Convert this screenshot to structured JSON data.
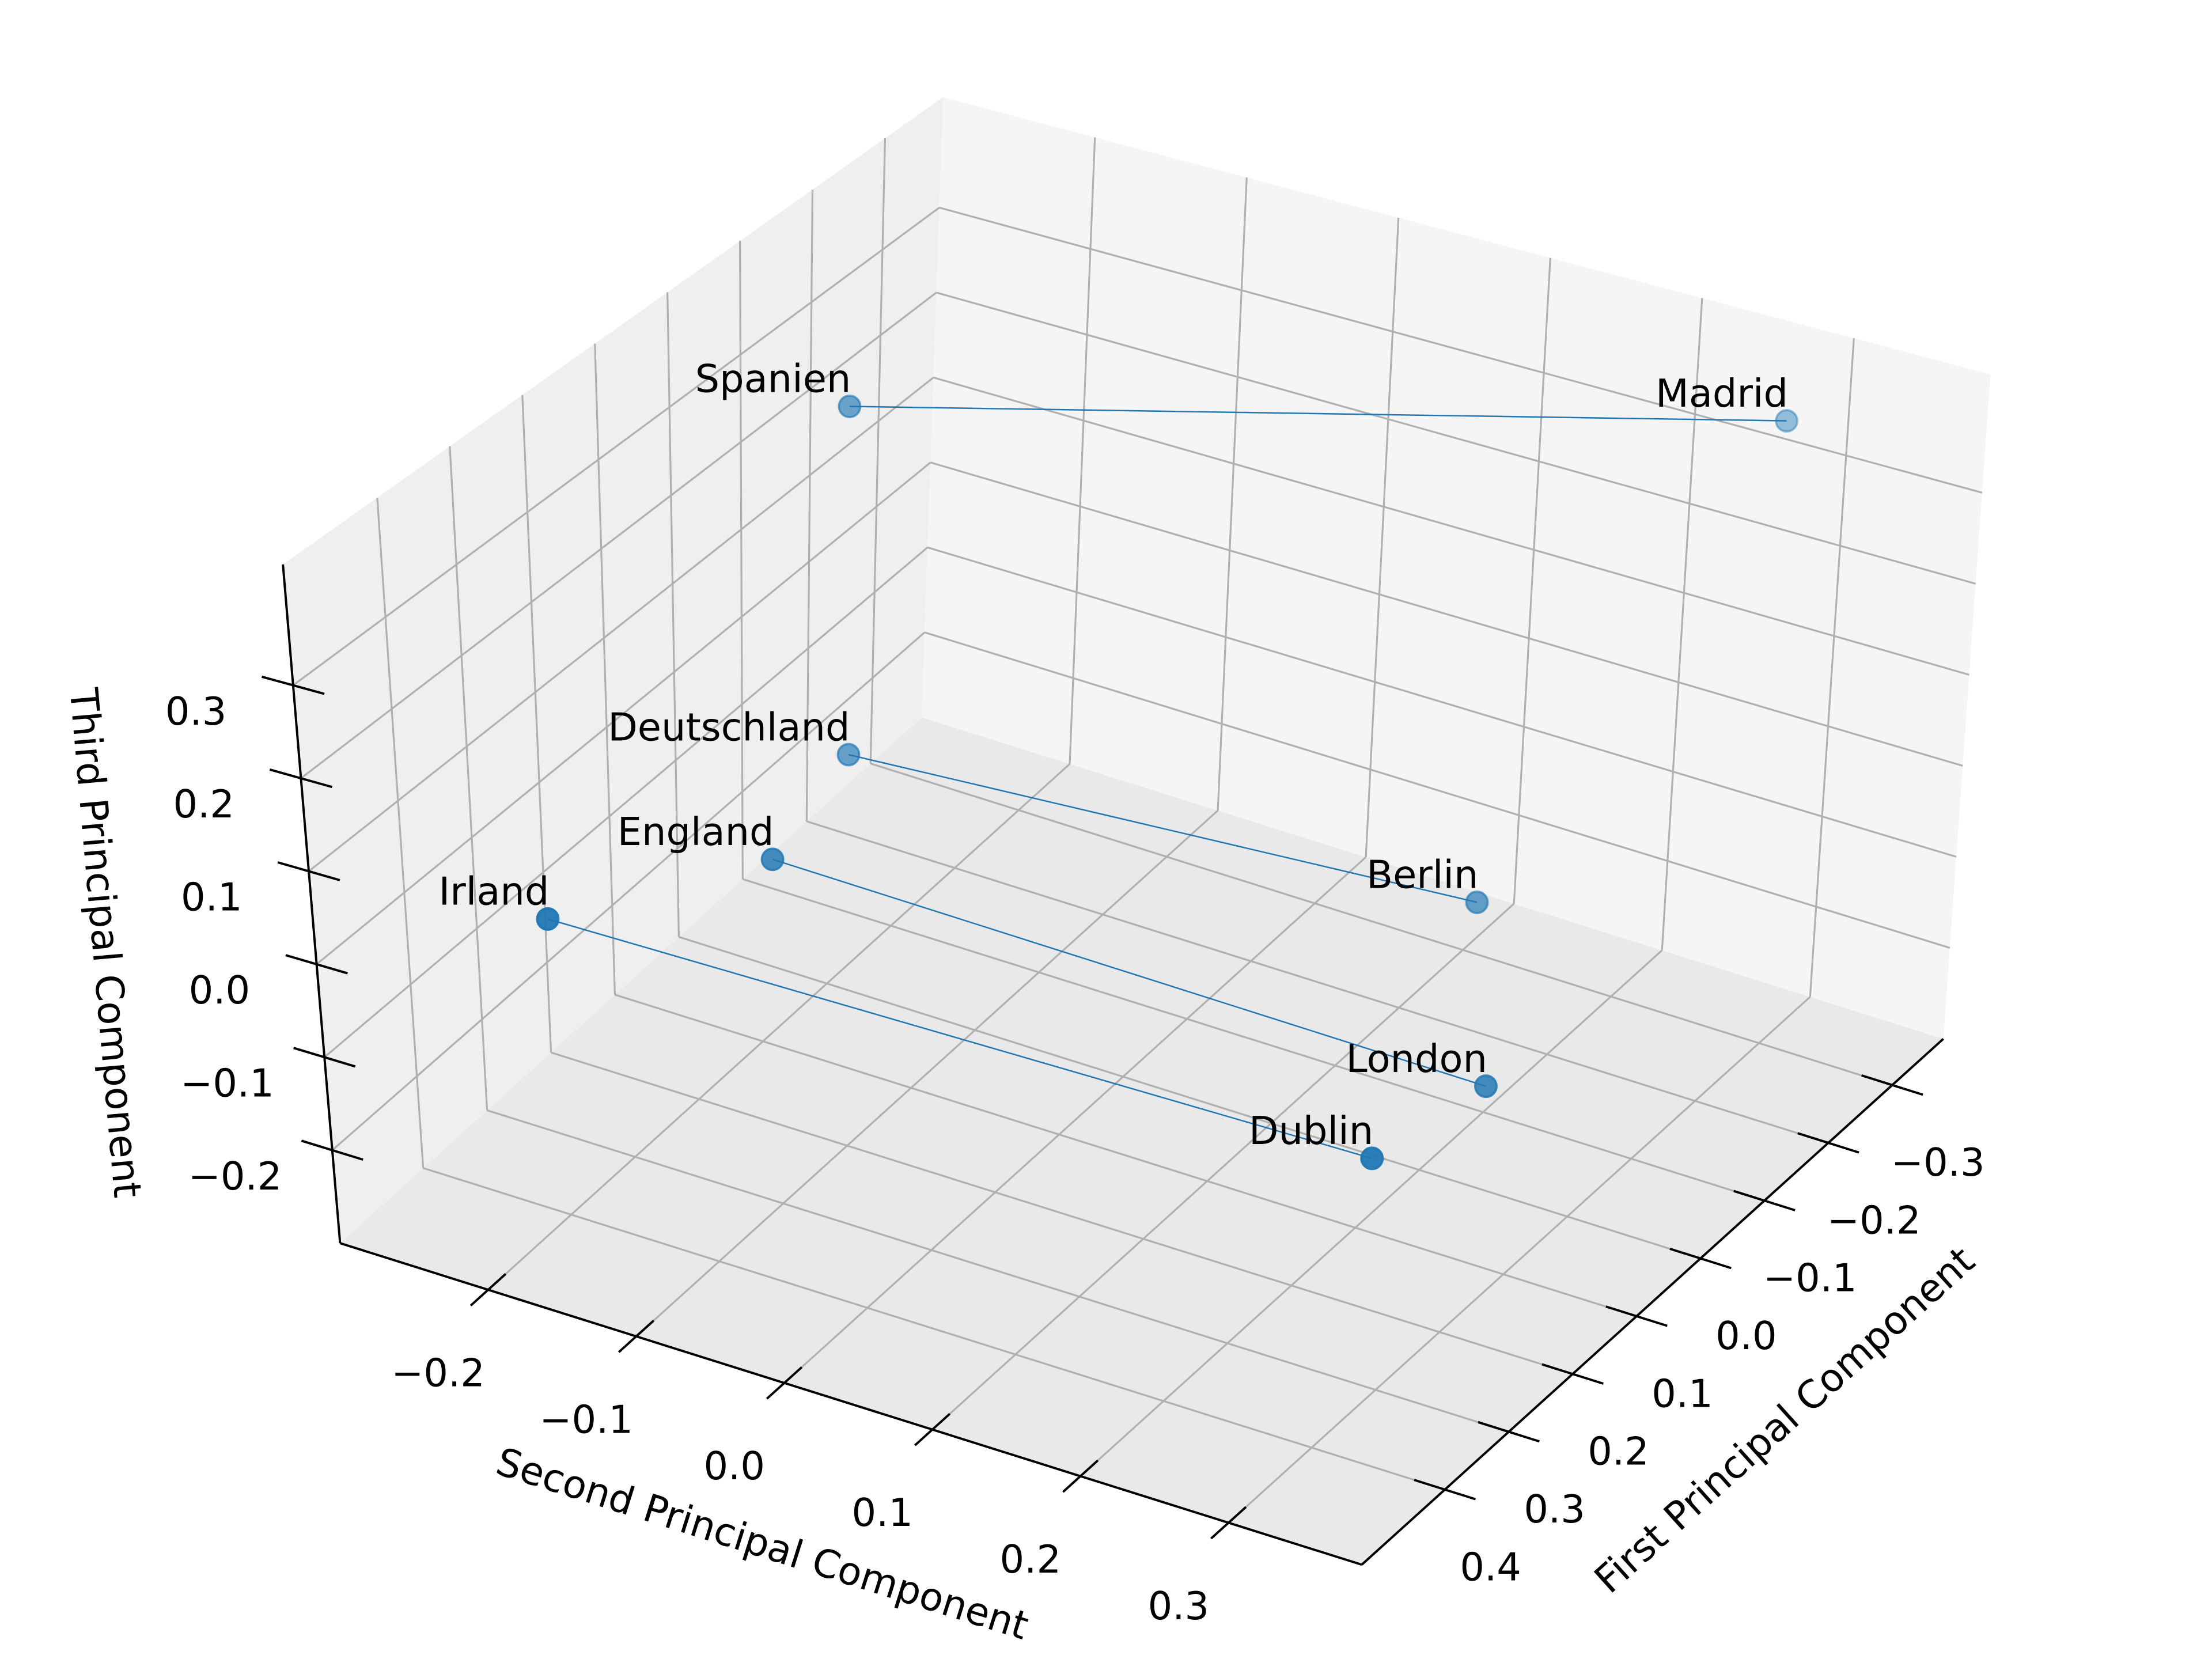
{
  "chart_data": {
    "type": "scatter3d",
    "color": "#1f77b4",
    "xlabel": "Second Principal Component",
    "ylabel": "First Principal Component",
    "zlabel": "Third Principal Component",
    "xlim": [
      -0.3,
      0.39
    ],
    "ylim": [
      -0.38,
      0.53
    ],
    "zlim": [
      -0.3,
      0.43
    ],
    "xticks": [
      {
        "value": -0.2,
        "label": "−0.2"
      },
      {
        "value": -0.1,
        "label": "−0.1"
      },
      {
        "value": 0,
        "label": "0.0"
      },
      0.1,
      0.2,
      0.3
    ],
    "yticks": [
      {
        "value": -0.3,
        "label": "−0.3"
      },
      {
        "value": -0.2,
        "label": "−0.2"
      },
      {
        "value": -0.1,
        "label": "−0.1"
      },
      {
        "value": 0,
        "label": "0.0"
      },
      0.1,
      0.2,
      0.3,
      0.4
    ],
    "zticks": [
      {
        "value": -0.2,
        "label": "−0.2"
      },
      {
        "value": -0.1,
        "label": "−0.1"
      },
      {
        "value": 0,
        "label": "0.0"
      },
      0.1,
      0.2,
      0.3
    ],
    "grid": true,
    "series": [
      {
        "labels": [
          "Irland",
          "Dublin"
        ],
        "x": [
          -0.184,
          0.366
        ],
        "y": [
          0.44,
          0.44
        ],
        "z": [
          0.05,
          0.05
        ]
      },
      {
        "labels": [
          "England",
          "London"
        ],
        "x": [
          -0.116,
          0.36
        ],
        "y": [
          0.26,
          0.26
        ],
        "z": [
          0.04,
          0.02
        ]
      },
      {
        "labels": [
          "Deutschland",
          "Berlin"
        ],
        "x": [
          -0.17,
          0.25
        ],
        "y": [
          0.03,
          0.03
        ],
        "z": [
          -0.01,
          0.03
        ]
      },
      {
        "labels": [
          "Spanien",
          "Madrid"
        ],
        "x": [
          -0.19,
          0.3
        ],
        "y": [
          -0.02,
          -0.29
        ],
        "z": [
          0.34,
          0.39
        ]
      }
    ]
  }
}
